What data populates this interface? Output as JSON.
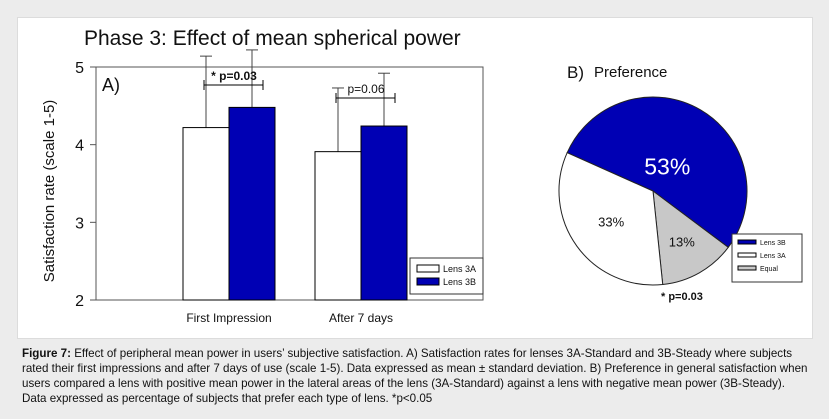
{
  "chart_data": [
    {
      "type": "bar",
      "title": "Phase 3: Effect of mean spherical power",
      "panel_label": "A)",
      "ylabel": "Satisfaction rate (scale 1-5)",
      "xlabel": "",
      "ylim": [
        2,
        5
      ],
      "yticks": [
        "2",
        "3",
        "4",
        "5"
      ],
      "categories": [
        "First Impression",
        "After 7 days"
      ],
      "series": [
        {
          "name": "Lens 3A",
          "color": "#ffffff",
          "values": [
            4.22,
            3.91
          ],
          "sd": [
            0.92,
            0.82
          ]
        },
        {
          "name": "Lens 3B",
          "color": "#0000b4",
          "values": [
            4.48,
            4.24
          ],
          "sd": [
            0.74,
            0.68
          ]
        }
      ],
      "annotations": [
        "* p=0.03",
        "p=0.06"
      ],
      "legend": "bottom-right",
      "grid": false
    },
    {
      "type": "pie",
      "title": "Preference",
      "panel_label": "B)",
      "slices": [
        {
          "name": "Lens 3B",
          "value": 53,
          "label": "53%",
          "color": "#0000b4"
        },
        {
          "name": "Lens 3A",
          "value": 33,
          "label": "33%",
          "color": "#ffffff"
        },
        {
          "name": "Equal",
          "value": 13,
          "label": "13%",
          "color": "#c8c8c8"
        }
      ],
      "annotation": "* p=0.03",
      "legend": "bottom-right"
    }
  ],
  "caption": {
    "label": "Figure 7:",
    "text": "Effect of peripheral mean power in users’ subjective satisfaction. A) Satisfaction rates for lenses 3A-Standard and 3B-Steady where subjects rated their first impressions and after 7 days of use (scale 1-5). Data expressed as mean ± standard deviation. B) Preference in general satisfaction when users compared a lens with positive mean power in the lateral areas of the lens (3A-Standard) against a lens with negative mean power (3B-Steady). Data expressed as percentage of subjects that prefer each type of lens. *p<0.05"
  }
}
